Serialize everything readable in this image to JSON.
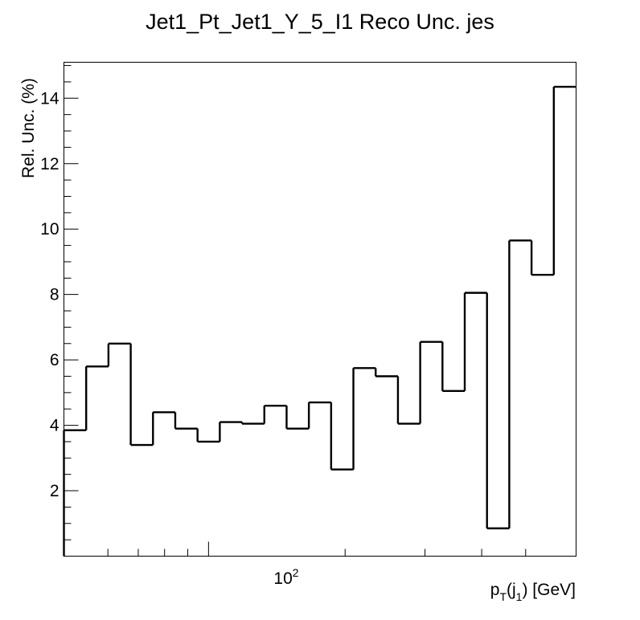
{
  "chart_data": {
    "type": "line",
    "style": "step histogram",
    "title": "Jet1_Pt_Jet1_Y_5_I1 Reco Unc. jes",
    "ylabel": "Rel. Unc. (%)",
    "xlabel": {
      "pre": "p",
      "sub1": "T",
      "mid": "(j",
      "sub2": "1",
      "post": ") [GeV]"
    },
    "x_scale": "log",
    "xlim": [
      49,
      507
    ],
    "ylim": [
      0,
      15.1
    ],
    "grid": false,
    "x_tick_labels": [
      {
        "value": 100,
        "base": "10",
        "exp": "2"
      }
    ],
    "y_ticks": [
      2,
      4,
      6,
      8,
      10,
      12,
      14
    ],
    "bins": [
      {
        "lo": 49,
        "hi": 56,
        "value": 3.85
      },
      {
        "lo": 56,
        "hi": 64,
        "value": 5.8
      },
      {
        "lo": 64,
        "hi": 74,
        "value": 6.5
      },
      {
        "lo": 74,
        "hi": 84,
        "value": 3.4
      },
      {
        "lo": 84,
        "hi": 97,
        "value": 4.4
      },
      {
        "lo": 97,
        "hi": 114,
        "value": 3.9
      },
      {
        "lo": 114,
        "hi": 133,
        "value": 3.5
      },
      {
        "lo": 133,
        "hi": 153,
        "value": 4.1
      },
      {
        "lo": 153,
        "hi": 174,
        "value": 4.05
      },
      {
        "lo": 174,
        "hi": 196,
        "value": 4.6
      },
      {
        "lo": 196,
        "hi": 220,
        "value": 3.9
      },
      {
        "lo": 220,
        "hi": 245,
        "value": 4.7
      },
      {
        "lo": 245,
        "hi": 272,
        "value": 2.65
      },
      {
        "lo": 272,
        "hi": 300,
        "value": 5.75
      },
      {
        "lo": 300,
        "hi": 330,
        "value": 5.5
      },
      {
        "lo": 330,
        "hi": 362,
        "value": 4.05
      },
      {
        "lo": 362,
        "hi": 395,
        "value": 6.55
      },
      {
        "lo": 395,
        "hi": 430,
        "value": 5.05
      },
      {
        "lo": 430,
        "hi": 468,
        "value": 8.05
      },
      {
        "lo": 468,
        "hi": 507,
        "value": 0.85
      },
      {
        "lo": 507,
        "hi": 548,
        "value": 9.65
      },
      {
        "lo": 548,
        "hi": 592,
        "value": 8.6
      },
      {
        "lo": 592,
        "hi": 638,
        "value": 14.35
      }
    ]
  }
}
